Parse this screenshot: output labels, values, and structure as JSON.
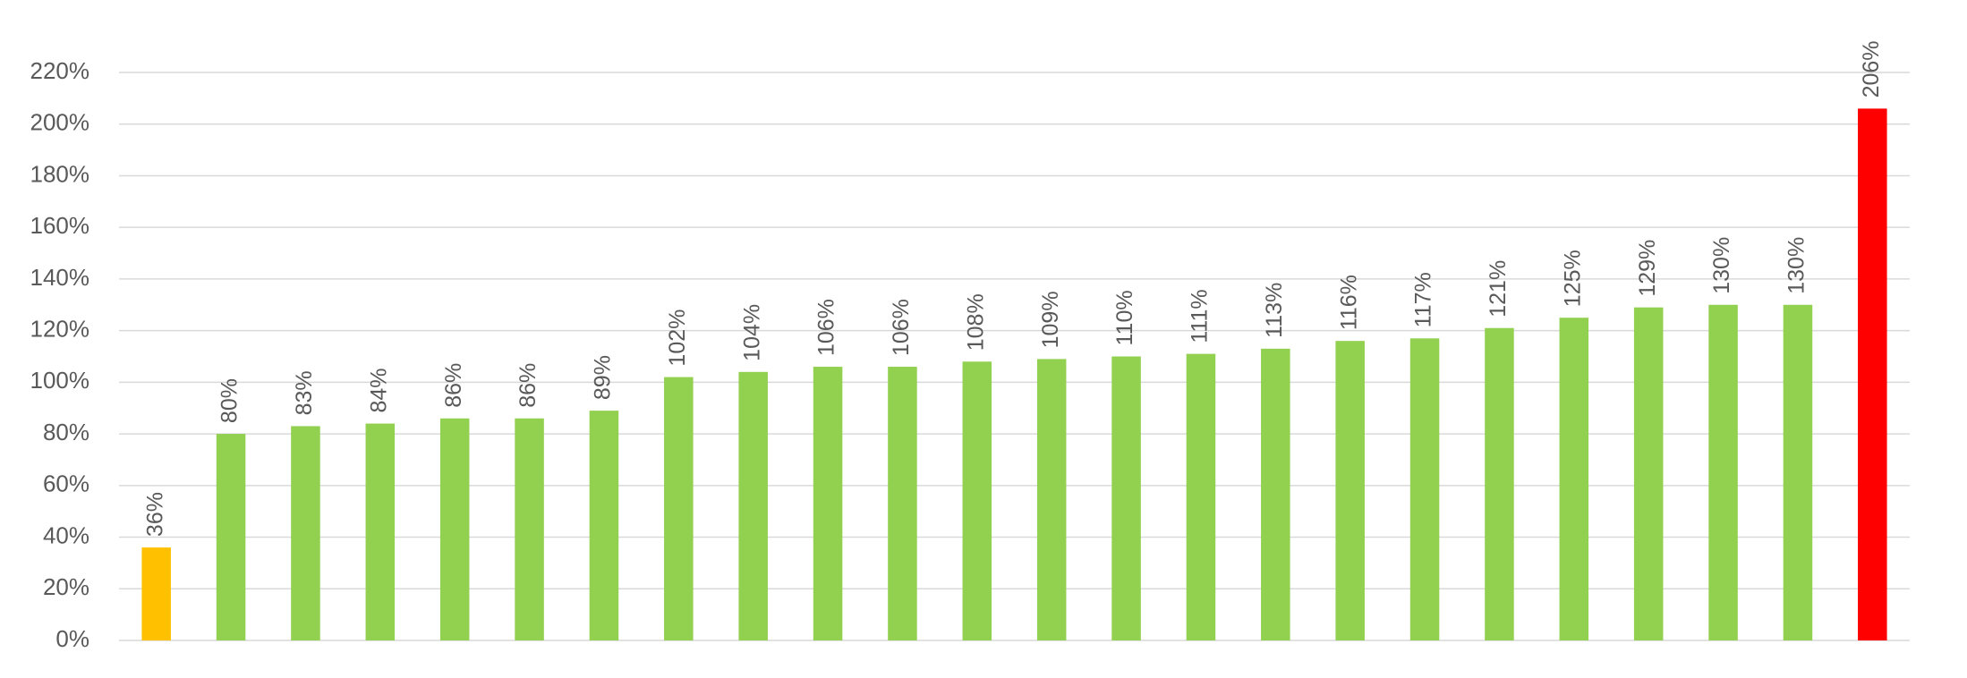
{
  "chart_data": {
    "type": "bar",
    "categories": [
      null,
      null,
      null,
      null,
      null,
      null,
      null,
      null,
      null,
      null,
      null,
      null,
      null,
      null,
      null,
      null,
      null,
      null,
      null,
      null,
      null,
      null,
      null,
      null
    ],
    "values": [
      36,
      80,
      83,
      84,
      86,
      86,
      89,
      102,
      104,
      106,
      106,
      108,
      109,
      110,
      111,
      113,
      116,
      117,
      121,
      125,
      129,
      130,
      130,
      206
    ],
    "value_labels": [
      "36%",
      "80%",
      "83%",
      "84%",
      "86%",
      "86%",
      "89%",
      "102%",
      "104%",
      "106%",
      "106%",
      "108%",
      "109%",
      "110%",
      "111%",
      "113%",
      "116%",
      "117%",
      "121%",
      "125%",
      "129%",
      "130%",
      "130%",
      "206%"
    ],
    "colors": [
      "#ffc000",
      "#92d050",
      "#92d050",
      "#92d050",
      "#92d050",
      "#92d050",
      "#92d050",
      "#92d050",
      "#92d050",
      "#92d050",
      "#92d050",
      "#92d050",
      "#92d050",
      "#92d050",
      "#92d050",
      "#92d050",
      "#92d050",
      "#92d050",
      "#92d050",
      "#92d050",
      "#92d050",
      "#92d050",
      "#92d050",
      "#ff0000"
    ],
    "ylim": [
      0,
      220
    ],
    "yticks": [
      {
        "value": 0,
        "label": "0%"
      },
      {
        "value": 20,
        "label": "20%"
      },
      {
        "value": 40,
        "label": "40%"
      },
      {
        "value": 60,
        "label": "60%"
      },
      {
        "value": 80,
        "label": "80%"
      },
      {
        "value": 100,
        "label": "100%"
      },
      {
        "value": 120,
        "label": "120%"
      },
      {
        "value": 140,
        "label": "140%"
      },
      {
        "value": 160,
        "label": "160%"
      },
      {
        "value": 180,
        "label": "180%"
      },
      {
        "value": 200,
        "label": "200%"
      },
      {
        "value": 220,
        "label": "220%"
      }
    ],
    "grid": true
  }
}
